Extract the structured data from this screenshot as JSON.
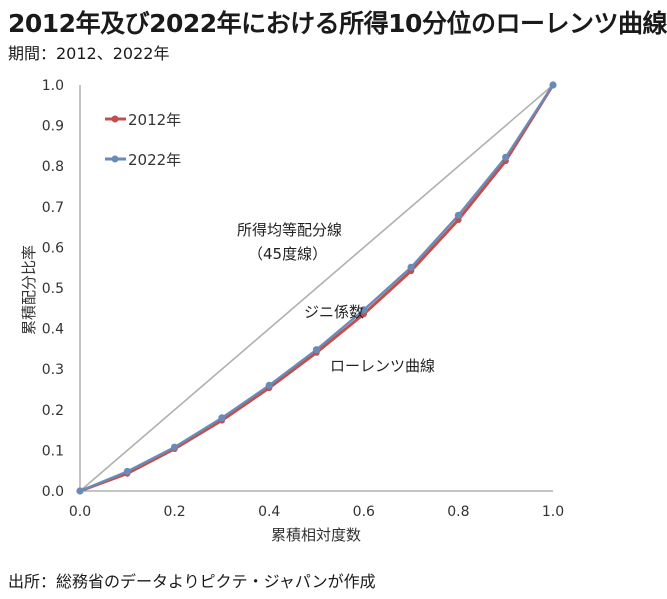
{
  "header": {
    "title": "2012年及び2022年における所得10分位のローレンツ曲線",
    "subtitle": "期間：2012、2022年"
  },
  "footer": {
    "source": "出所：総務省のデータよりピクテ・ジャパンが作成"
  },
  "colors": {
    "series_2012": "#c0504d",
    "series_2022": "#6a8ab8",
    "equality_line": "#b0b0b0",
    "axis": "#888888"
  },
  "chart_data": {
    "type": "line",
    "title": "2012年及び2022年における所得10分位のローレンツ曲線",
    "xlabel": "累積相対度数",
    "ylabel": "累積配分比率",
    "xlim": [
      0.0,
      1.0
    ],
    "ylim": [
      0.0,
      1.0
    ],
    "x_ticks": [
      "0.0",
      "0.2",
      "0.4",
      "0.6",
      "0.8",
      "1.0"
    ],
    "y_ticks": [
      "0.0",
      "0.1",
      "0.2",
      "0.3",
      "0.4",
      "0.5",
      "0.6",
      "0.7",
      "0.8",
      "0.9",
      "1.0"
    ],
    "grid": false,
    "legend_position": "top-left",
    "x": [
      0.0,
      0.1,
      0.2,
      0.3,
      0.4,
      0.5,
      0.6,
      0.7,
      0.8,
      0.9,
      1.0
    ],
    "series": [
      {
        "name": "2012年",
        "values": [
          0.0,
          0.043,
          0.104,
          0.174,
          0.254,
          0.341,
          0.436,
          0.542,
          0.668,
          0.813,
          1.0
        ]
      },
      {
        "name": "2022年",
        "values": [
          0.0,
          0.048,
          0.108,
          0.18,
          0.26,
          0.348,
          0.446,
          0.551,
          0.679,
          0.822,
          1.0
        ]
      }
    ],
    "reference_line": {
      "x": [
        0.0,
        1.0
      ],
      "y": [
        0.0,
        1.0
      ]
    },
    "annotations": {
      "equality_line_label_1": "所得均等配分線",
      "equality_line_label_2": "（45度線）",
      "gini_label": "ジニ係数",
      "lorenz_label": "ローレンツ曲線"
    }
  }
}
